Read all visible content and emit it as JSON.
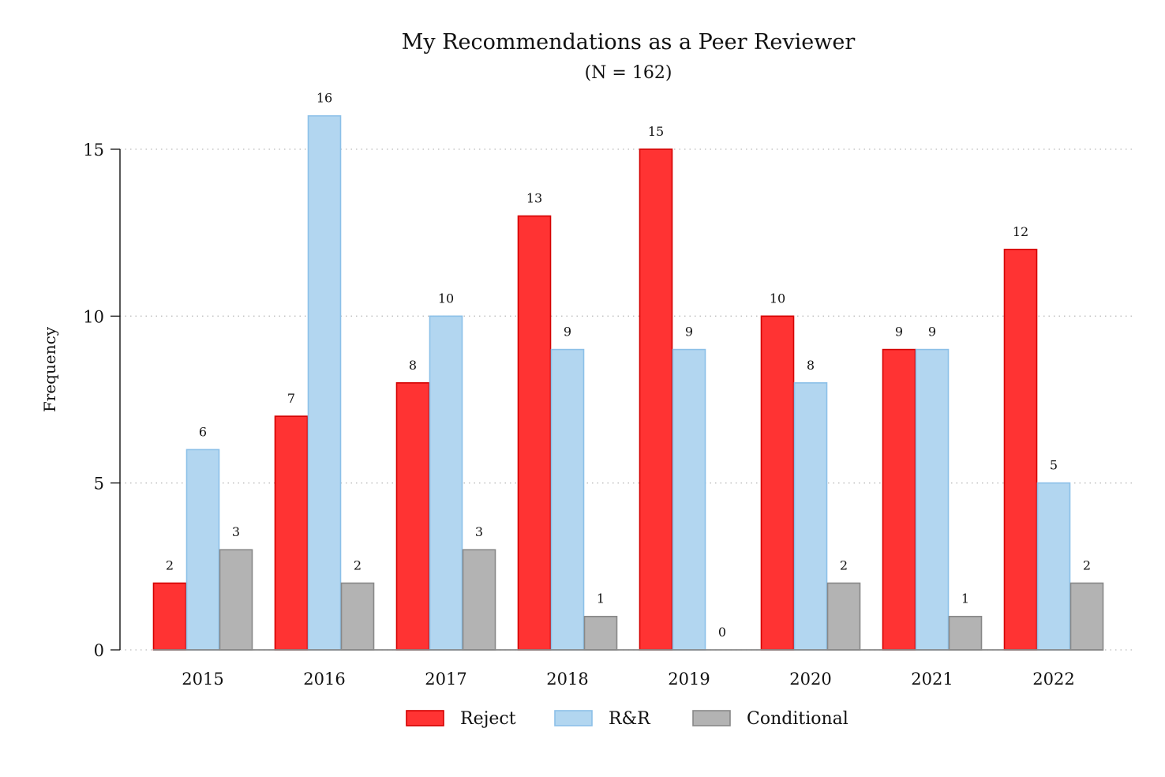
{
  "chart_data": {
    "type": "bar",
    "title": "My Recommendations as a Peer Reviewer",
    "subtitle": "(N = 162)",
    "xlabel": "",
    "ylabel": "Frequency",
    "ylim": [
      0,
      16
    ],
    "yticks": [
      0,
      5,
      10,
      15
    ],
    "grid": true,
    "legend_position": "bottom",
    "categories": [
      "2015",
      "2016",
      "2017",
      "2018",
      "2019",
      "2020",
      "2021",
      "2022"
    ],
    "series": [
      {
        "name": "Reject",
        "color": "#ff3333",
        "stroke": "#d40000",
        "values": [
          2,
          7,
          8,
          13,
          15,
          10,
          9,
          12
        ]
      },
      {
        "name": "R&R",
        "color": "#b2d6f0",
        "stroke": "#8cc0e8",
        "values": [
          6,
          16,
          10,
          9,
          9,
          8,
          9,
          5
        ]
      },
      {
        "name": "Conditional",
        "color": "#b3b3b3",
        "stroke": "#888888",
        "values": [
          3,
          2,
          3,
          1,
          0,
          2,
          1,
          2
        ]
      }
    ]
  }
}
